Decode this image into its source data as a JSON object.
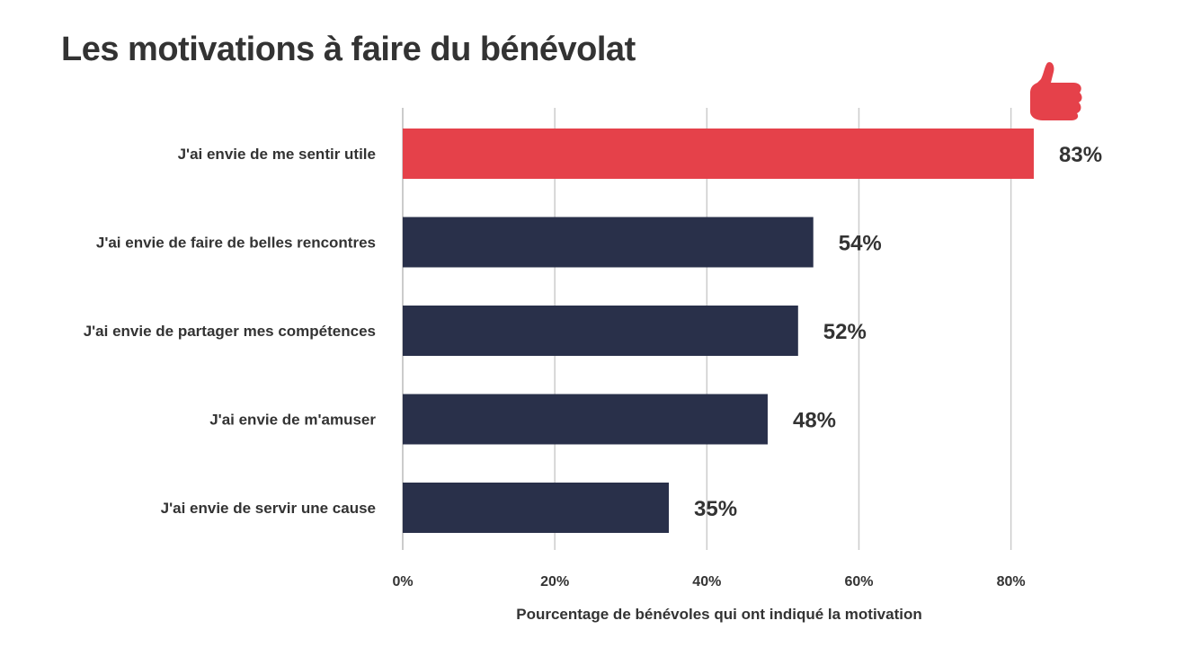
{
  "chart_data": {
    "type": "bar",
    "orientation": "horizontal",
    "title": "Les motivations à faire du bénévolat",
    "xlabel": "Pourcentage de bénévoles qui ont indiqué la motivation",
    "ylabel": "",
    "categories": [
      "J'ai envie de me sentir utile",
      "J'ai envie de faire de belles rencontres",
      "J'ai envie de partager mes compétences",
      "J'ai envie de m'amuser",
      "J'ai envie de servir une cause"
    ],
    "values": [
      83,
      54,
      52,
      48,
      35
    ],
    "value_labels": [
      "83%",
      "54%",
      "52%",
      "48%",
      "35%"
    ],
    "xlim": [
      0,
      83
    ],
    "ticks": [
      0,
      20,
      40,
      60,
      80
    ],
    "tick_labels": [
      "0%",
      "20%",
      "40%",
      "60%",
      "80%"
    ],
    "grid": "vertical",
    "highlight_index": 0,
    "colors": {
      "highlight": "#e5414a",
      "bar": "#29304a",
      "grid": "#cccccc",
      "text": "#333333"
    },
    "icon": "thumbs-up-icon"
  }
}
